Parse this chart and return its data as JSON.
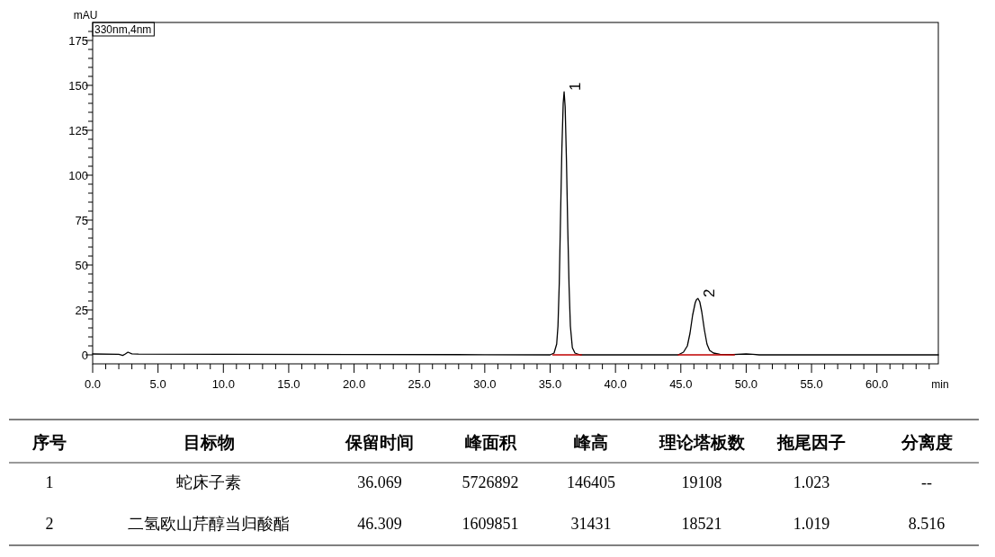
{
  "chart_data": {
    "type": "line",
    "xlabel": "min",
    "ylabel": "mAU",
    "xlim": [
      0,
      64.7
    ],
    "ylim": [
      -5,
      185
    ],
    "xticks": [
      {
        "value": 0,
        "label": "0.0"
      },
      {
        "value": 1,
        "label": null
      },
      {
        "value": 2,
        "label": null
      },
      {
        "value": 3,
        "label": null
      },
      {
        "value": 4,
        "label": null
      },
      {
        "value": 5,
        "label": "5.0"
      },
      {
        "value": 6,
        "label": null
      },
      {
        "value": 7,
        "label": null
      },
      {
        "value": 8,
        "label": null
      },
      {
        "value": 9,
        "label": null
      },
      {
        "value": 10,
        "label": "10.0"
      },
      {
        "value": 11,
        "label": null
      },
      {
        "value": 12,
        "label": null
      },
      {
        "value": 13,
        "label": null
      },
      {
        "value": 14,
        "label": null
      },
      {
        "value": 15,
        "label": "15.0"
      },
      {
        "value": 16,
        "label": null
      },
      {
        "value": 17,
        "label": null
      },
      {
        "value": 18,
        "label": null
      },
      {
        "value": 19,
        "label": null
      },
      {
        "value": 20,
        "label": "20.0"
      },
      {
        "value": 21,
        "label": null
      },
      {
        "value": 22,
        "label": null
      },
      {
        "value": 23,
        "label": null
      },
      {
        "value": 24,
        "label": null
      },
      {
        "value": 25,
        "label": "25.0"
      },
      {
        "value": 26,
        "label": null
      },
      {
        "value": 27,
        "label": null
      },
      {
        "value": 28,
        "label": null
      },
      {
        "value": 29,
        "label": null
      },
      {
        "value": 30,
        "label": "30.0"
      },
      {
        "value": 31,
        "label": null
      },
      {
        "value": 32,
        "label": null
      },
      {
        "value": 33,
        "label": null
      },
      {
        "value": 34,
        "label": null
      },
      {
        "value": 35,
        "label": "35.0"
      },
      {
        "value": 36,
        "label": null
      },
      {
        "value": 37,
        "label": null
      },
      {
        "value": 38,
        "label": null
      },
      {
        "value": 39,
        "label": null
      },
      {
        "value": 40,
        "label": "40.0"
      },
      {
        "value": 41,
        "label": null
      },
      {
        "value": 42,
        "label": null
      },
      {
        "value": 43,
        "label": null
      },
      {
        "value": 44,
        "label": null
      },
      {
        "value": 45,
        "label": "45.0"
      },
      {
        "value": 46,
        "label": null
      },
      {
        "value": 47,
        "label": null
      },
      {
        "value": 48,
        "label": null
      },
      {
        "value": 49,
        "label": null
      },
      {
        "value": 50,
        "label": "50.0"
      },
      {
        "value": 51,
        "label": null
      },
      {
        "value": 52,
        "label": null
      },
      {
        "value": 53,
        "label": null
      },
      {
        "value": 54,
        "label": null
      },
      {
        "value": 55,
        "label": "55.0"
      },
      {
        "value": 56,
        "label": null
      },
      {
        "value": 57,
        "label": null
      },
      {
        "value": 58,
        "label": null
      },
      {
        "value": 59,
        "label": null
      },
      {
        "value": 60,
        "label": "60.0"
      },
      {
        "value": 61,
        "label": null
      },
      {
        "value": 62,
        "label": null
      },
      {
        "value": 63,
        "label": null
      },
      {
        "value": 64,
        "label": null
      }
    ],
    "yticks": [
      0,
      {
        "value": 5,
        "label": null
      },
      {
        "value": 10,
        "label": null
      },
      {
        "value": 15,
        "label": null
      },
      {
        "value": 20,
        "label": null
      },
      25,
      {
        "value": 30,
        "label": null
      },
      {
        "value": 35,
        "label": null
      },
      {
        "value": 40,
        "label": null
      },
      {
        "value": 45,
        "label": null
      },
      50,
      {
        "value": 55,
        "label": null
      },
      {
        "value": 60,
        "label": null
      },
      {
        "value": 65,
        "label": null
      },
      {
        "value": 70,
        "label": null
      },
      75,
      {
        "value": 80,
        "label": null
      },
      {
        "value": 85,
        "label": null
      },
      {
        "value": 90,
        "label": null
      },
      {
        "value": 95,
        "label": null
      },
      100,
      {
        "value": 105,
        "label": null
      },
      {
        "value": 110,
        "label": null
      },
      {
        "value": 115,
        "label": null
      },
      {
        "value": 120,
        "label": null
      },
      125,
      {
        "value": 130,
        "label": null
      },
      {
        "value": 135,
        "label": null
      },
      {
        "value": 140,
        "label": null
      },
      {
        "value": 145,
        "label": null
      },
      150,
      {
        "value": 155,
        "label": null
      },
      {
        "value": 160,
        "label": null
      },
      {
        "value": 165,
        "label": null
      },
      {
        "value": 170,
        "label": null
      },
      175,
      {
        "value": 180,
        "label": null
      }
    ],
    "series": [
      {
        "color": "#000000",
        "x": [
          0,
          2.0,
          2.3,
          2.5,
          2.7,
          3.0,
          3.5,
          10,
          20,
          30,
          35.0,
          35.3,
          35.5,
          35.6,
          35.7,
          35.8,
          35.9,
          36.0,
          36.07,
          36.15,
          36.25,
          36.35,
          36.45,
          36.55,
          36.7,
          36.9,
          37.3,
          40,
          44.8,
          45.2,
          45.5,
          45.7,
          45.9,
          46.1,
          46.2,
          46.31,
          46.45,
          46.6,
          46.8,
          47.0,
          47.2,
          47.5,
          48.0,
          49.0,
          50.0,
          50.5,
          51,
          64.7
        ],
        "values": [
          0.5,
          0.3,
          -0.3,
          0.5,
          1.5,
          0.6,
          0.4,
          0.3,
          0.2,
          0.1,
          0,
          1,
          6,
          16,
          40,
          78,
          115,
          140,
          146.4,
          138,
          108,
          70,
          38,
          16,
          4,
          1,
          0,
          0,
          0,
          1.5,
          5,
          12,
          22,
          29,
          30.8,
          31.4,
          29.5,
          24,
          14,
          6,
          2.5,
          1,
          0.3,
          0.2,
          0.5,
          0.3,
          0,
          0
        ]
      },
      {
        "color": "#c00000",
        "x": [
          35.2,
          37.4
        ],
        "values": [
          0,
          0
        ]
      },
      {
        "color": "#c00000",
        "x": [
          44.8,
          49.1
        ],
        "values": [
          0,
          0
        ]
      }
    ],
    "annotations": [
      "330nm,4nm",
      {
        "text": "1",
        "x": 36.07,
        "y": 146.4
      },
      {
        "text": "2",
        "x": 46.31,
        "y": 31.4
      },
      "序号",
      "目标物",
      "保留时间",
      "峰面积",
      "峰高",
      "理论塔板数",
      "拖尾因子",
      "分离度",
      "1",
      "蛇床子素",
      "36.069",
      "5726892",
      "146405",
      "19108",
      "1.023",
      "--",
      "2",
      "二氢欧山芹醇当归酸酯",
      "46.309",
      "1609851",
      "31431",
      "18521",
      "1.019",
      "8.516"
    ]
  }
}
